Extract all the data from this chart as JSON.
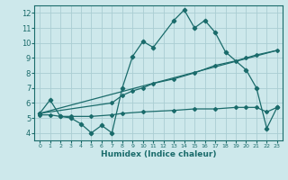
{
  "background_color": "#cde8eb",
  "grid_color": "#aacdd2",
  "line_color": "#1a6b6b",
  "marker_color": "#1a6b6b",
  "xlabel": "Humidex (Indice chaleur)",
  "xlim": [
    -0.5,
    23.5
  ],
  "ylim": [
    3.5,
    12.5
  ],
  "yticks": [
    4,
    5,
    6,
    7,
    8,
    9,
    10,
    11,
    12
  ],
  "xticks": [
    0,
    1,
    2,
    3,
    4,
    5,
    6,
    7,
    8,
    9,
    10,
    11,
    12,
    13,
    14,
    15,
    16,
    17,
    18,
    19,
    20,
    21,
    22,
    23
  ],
  "lines": [
    {
      "x": [
        0,
        1,
        2,
        3,
        4,
        5,
        6,
        7,
        8,
        9,
        10,
        11,
        13,
        14,
        15,
        16,
        17,
        18,
        20,
        21,
        22,
        23
      ],
      "y": [
        5.3,
        6.2,
        5.1,
        5.0,
        4.6,
        4.0,
        4.5,
        4.0,
        7.0,
        9.1,
        10.1,
        9.7,
        11.5,
        12.2,
        11.0,
        11.5,
        10.7,
        9.4,
        8.2,
        7.0,
        4.3,
        5.7
      ]
    },
    {
      "x": [
        0,
        7,
        8,
        9,
        10,
        11,
        13,
        15,
        17,
        19,
        20,
        21,
        23
      ],
      "y": [
        5.3,
        6.0,
        6.5,
        6.8,
        7.0,
        7.3,
        7.6,
        8.0,
        8.5,
        8.8,
        9.0,
        9.2,
        9.5
      ]
    },
    {
      "x": [
        0,
        23
      ],
      "y": [
        5.3,
        9.5
      ]
    },
    {
      "x": [
        0,
        1,
        2,
        3,
        5,
        7,
        8,
        10,
        13,
        15,
        17,
        19,
        20,
        21,
        22,
        23
      ],
      "y": [
        5.2,
        5.2,
        5.1,
        5.1,
        5.1,
        5.2,
        5.3,
        5.4,
        5.5,
        5.6,
        5.6,
        5.7,
        5.7,
        5.7,
        5.4,
        5.7
      ]
    }
  ]
}
